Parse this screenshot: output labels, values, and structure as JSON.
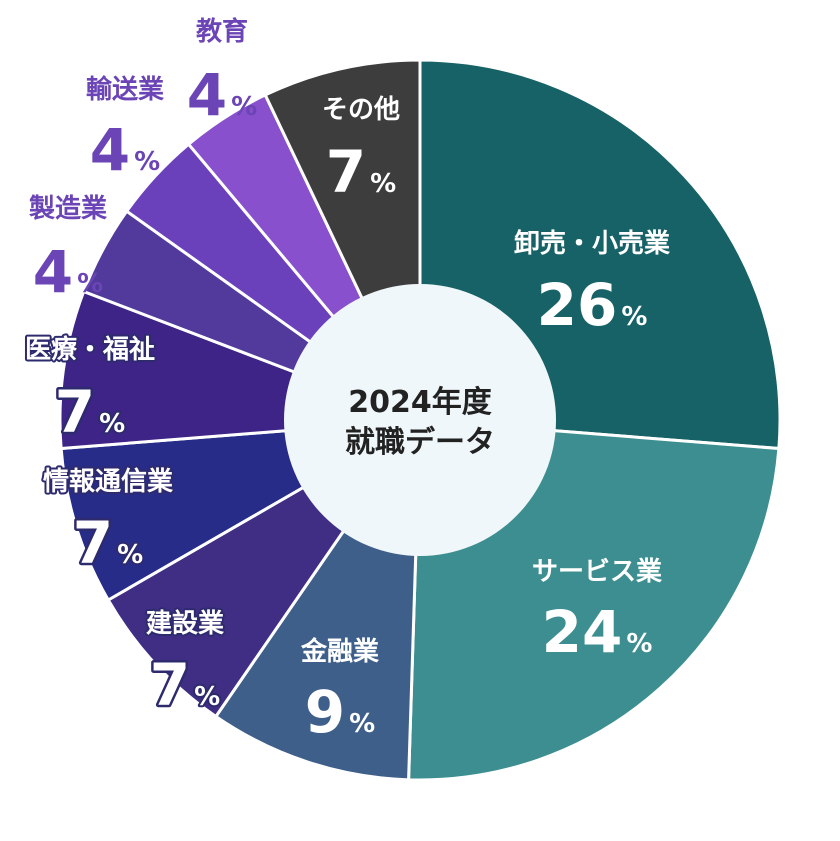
{
  "chart_data": {
    "type": "pie",
    "variant": "donut",
    "center_label": [
      "2024年度",
      "就職データ"
    ],
    "unit": "%",
    "slices": [
      {
        "label": "卸売・小売業",
        "value": 26,
        "color": "#176266"
      },
      {
        "label": "サービス業",
        "value": 24,
        "color": "#3d8e90"
      },
      {
        "label": "金融業",
        "value": 9,
        "color": "#3e5f8a"
      },
      {
        "label": "建設業",
        "value": 7,
        "color": "#3f2e84"
      },
      {
        "label": "情報通信業",
        "value": 7,
        "color": "#262c88"
      },
      {
        "label": "医療・福祉",
        "value": 7,
        "color": "#3e2486"
      },
      {
        "label": "製造業",
        "value": 4,
        "color": "#523a9c"
      },
      {
        "label": "輸送業",
        "value": 4,
        "color": "#6b40bb"
      },
      {
        "label": "教育",
        "value": 4,
        "color": "#8850cc"
      },
      {
        "label": "その他",
        "value": 7,
        "color": "#3d3d3d"
      }
    ],
    "center_fill": "#f0f7fa",
    "outside_label_color": "#6b44b5"
  }
}
